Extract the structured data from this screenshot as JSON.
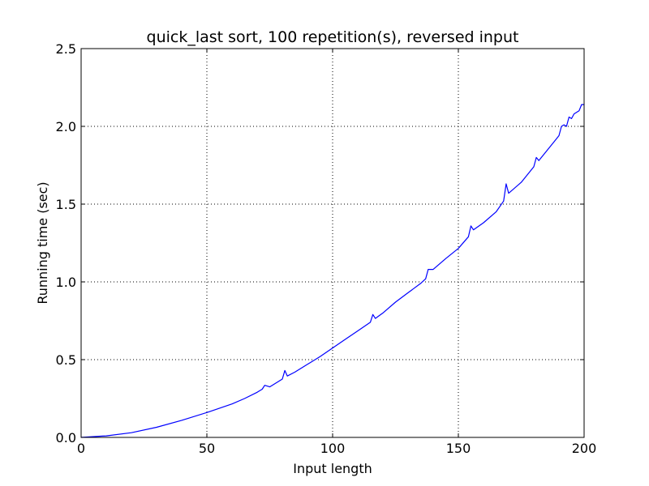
{
  "chart_data": {
    "type": "line",
    "title": "quick_last sort, 100 repetition(s), reversed input",
    "xlabel": "Input length",
    "ylabel": "Running time (sec)",
    "xlim": [
      0,
      200
    ],
    "ylim": [
      0,
      2.5
    ],
    "x_ticks": [
      0,
      50,
      100,
      150,
      200
    ],
    "x_tick_labels": [
      "0",
      "50",
      "100",
      "150",
      "200"
    ],
    "y_ticks": [
      0,
      0.5,
      1.0,
      1.5,
      2.0,
      2.5
    ],
    "y_tick_labels": [
      "0.0",
      "0.5",
      "1.0",
      "1.5",
      "2.0",
      "2.5"
    ],
    "grid": true,
    "grid_style": "dotted",
    "series": [
      {
        "color": "#0000ff",
        "x": [
          0,
          10,
          20,
          30,
          40,
          50,
          60,
          65,
          70,
          72,
          73,
          75,
          80,
          81,
          82,
          85,
          90,
          95,
          100,
          105,
          110,
          115,
          116,
          117,
          120,
          125,
          130,
          135,
          137,
          138,
          140,
          145,
          150,
          154,
          155,
          156,
          160,
          165,
          168,
          169,
          170,
          175,
          180,
          181,
          182,
          185,
          188,
          190,
          191,
          192,
          193,
          194,
          195,
          196,
          198,
          199,
          200
        ],
        "y": [
          0.0,
          0.01,
          0.03,
          0.065,
          0.11,
          0.16,
          0.215,
          0.25,
          0.29,
          0.31,
          0.335,
          0.325,
          0.375,
          0.43,
          0.395,
          0.42,
          0.47,
          0.52,
          0.575,
          0.63,
          0.685,
          0.74,
          0.79,
          0.765,
          0.8,
          0.87,
          0.93,
          0.99,
          1.02,
          1.08,
          1.08,
          1.15,
          1.215,
          1.29,
          1.36,
          1.335,
          1.38,
          1.45,
          1.52,
          1.63,
          1.57,
          1.64,
          1.74,
          1.8,
          1.78,
          1.84,
          1.9,
          1.94,
          2.0,
          2.01,
          2.0,
          2.06,
          2.05,
          2.08,
          2.1,
          2.14,
          2.14
        ]
      }
    ]
  }
}
